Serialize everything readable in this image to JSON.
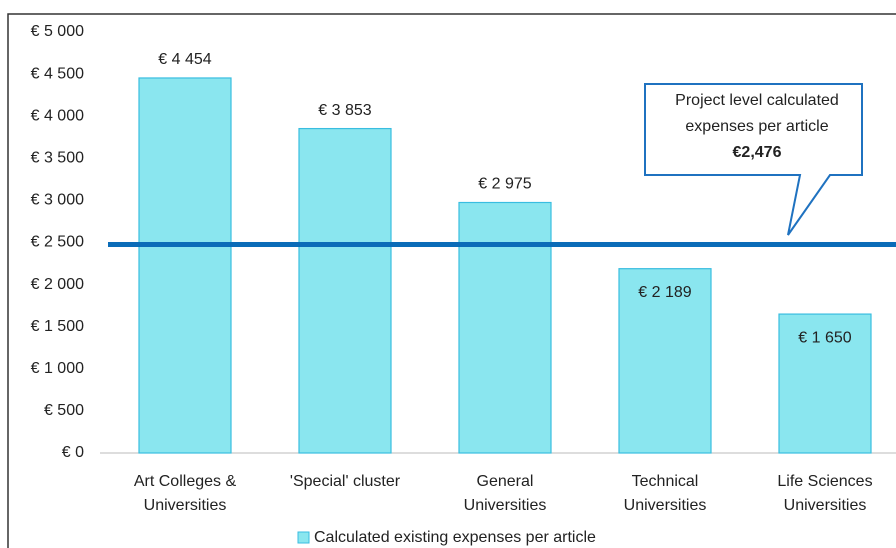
{
  "chart_data": {
    "type": "bar",
    "categories": [
      [
        "Art Colleges &",
        "Universities"
      ],
      [
        "'Special' cluster"
      ],
      [
        "General",
        "Universities"
      ],
      [
        "Technical",
        "Universities"
      ],
      [
        "Life Sciences",
        "Universities"
      ]
    ],
    "series": [
      {
        "name": "Calculated existing expenses per article",
        "color": "#8ae6ef",
        "values": [
          4454,
          3853,
          2975,
          2189,
          1650
        ],
        "value_labels": [
          "€ 4 454",
          "€ 3 853",
          "€ 2 975",
          "€ 2 189",
          "€ 1 650"
        ]
      }
    ],
    "ylim": [
      0,
      5000
    ],
    "yticks": [
      {
        "value": 0,
        "label": "€ 0"
      },
      {
        "value": 500,
        "label": "€ 500"
      },
      {
        "value": 1000,
        "label": "€ 1 000"
      },
      {
        "value": 1500,
        "label": "€ 1 500"
      },
      {
        "value": 2000,
        "label": "€ 2 000"
      },
      {
        "value": 2500,
        "label": "€ 2 500"
      },
      {
        "value": 3000,
        "label": "€ 3 000"
      },
      {
        "value": 3500,
        "label": "€ 3 500"
      },
      {
        "value": 4000,
        "label": "€ 4 000"
      },
      {
        "value": 4500,
        "label": "€ 4 500"
      },
      {
        "value": 5000,
        "label": "€ 5 000"
      }
    ],
    "reference_line": {
      "value": 2476,
      "label": "€2,476",
      "color": "#0b6cb8",
      "text": [
        "Project level calculated",
        "expenses per article"
      ]
    },
    "legend": "bottom"
  }
}
